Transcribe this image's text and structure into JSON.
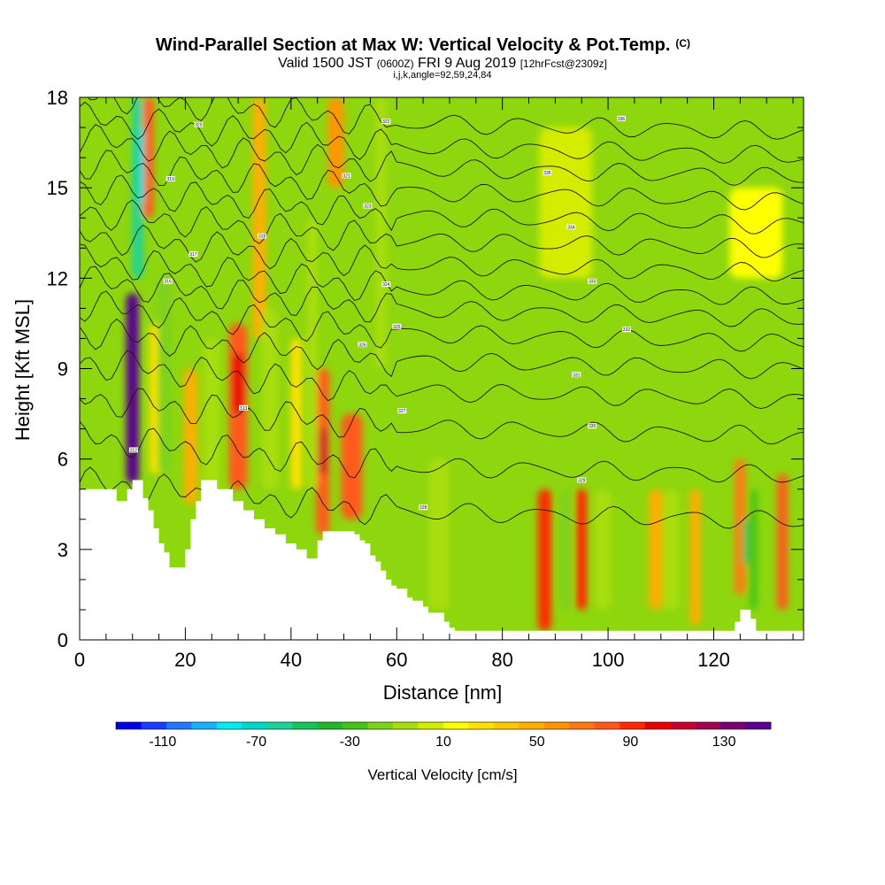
{
  "header": {
    "title": "Wind-Parallel Section at Max W: Vertical Velocity & Pot.Temp.",
    "title_mark": "(C)",
    "line2_a": "Valid 1500 JST",
    "line2_b": "(0600Z)",
    "line2_c": "FRI 9 Aug 2019",
    "line2_d": "[12hrFcst@2309z]",
    "line3": "i,j,k,angle=92,59,24,84"
  },
  "colors": {
    "colorbar": [
      "#0000e6",
      "#1a3cff",
      "#1f78ff",
      "#18b0ff",
      "#00ecf2",
      "#00d9c8",
      "#1cd39a",
      "#18c25d",
      "#24b62a",
      "#44c418",
      "#7ed21a",
      "#a8de0e",
      "#d4ec00",
      "#ffff00",
      "#ffe200",
      "#ffc800",
      "#ffae00",
      "#ff9400",
      "#ff7a14",
      "#ff5a1a",
      "#ff2a00",
      "#e60000",
      "#c8002c",
      "#a0004e",
      "#7a0070",
      "#580090"
    ],
    "background_field": "#8ed60e",
    "terrain": "#ffffff",
    "contour": "#1a1a1a"
  },
  "chart_data": {
    "type": "heatmap",
    "xlabel": "Distance [nm]",
    "ylabel": "Height [Kft MSL]",
    "xlim": [
      0,
      137
    ],
    "ylim": [
      0,
      18
    ],
    "x_ticks": [
      0,
      20,
      40,
      60,
      80,
      100,
      120
    ],
    "y_ticks": [
      0,
      3,
      6,
      9,
      12,
      15,
      18
    ],
    "colorbar": {
      "label": "Vertical Velocity [cm/s]",
      "tick_labels": [
        "-110",
        "-70",
        "-30",
        "10",
        "50",
        "90",
        "130"
      ],
      "min": -130,
      "max": 150,
      "step": 10
    },
    "cells": [
      {
        "x": 10,
        "y0": 5.2,
        "y1": 11.5,
        "w": 2.4,
        "value": 130
      },
      {
        "x": 10,
        "y0": 6.5,
        "y1": 10.5,
        "w": 1.2,
        "value": 140
      },
      {
        "x": 13,
        "y0": 14,
        "y1": 18,
        "w": 2,
        "value": 60
      },
      {
        "x": 14.5,
        "y0": 5.5,
        "y1": 10.5,
        "w": 2.5,
        "value": 10
      },
      {
        "x": 21,
        "y0": 4.5,
        "y1": 9,
        "w": 2.5,
        "value": 30
      },
      {
        "x": 30,
        "y0": 5,
        "y1": 10.5,
        "w": 3.5,
        "value": 60
      },
      {
        "x": 30,
        "y0": 7.5,
        "y1": 9.5,
        "w": 2,
        "value": 80
      },
      {
        "x": 34,
        "y0": 10,
        "y1": 18,
        "w": 2.5,
        "value": 30
      },
      {
        "x": 41,
        "y0": 5,
        "y1": 10,
        "w": 2,
        "value": 10
      },
      {
        "x": 46,
        "y0": 3.5,
        "y1": 9,
        "w": 2.5,
        "value": 60
      },
      {
        "x": 46,
        "y0": 5.5,
        "y1": 7,
        "w": 1.3,
        "value": 90
      },
      {
        "x": 51.5,
        "y0": 4,
        "y1": 7.5,
        "w": 4,
        "value": 60
      },
      {
        "x": 48.5,
        "y0": 15,
        "y1": 18,
        "w": 3,
        "value": 40
      },
      {
        "x": 88,
        "y0": 0.3,
        "y1": 5,
        "w": 2.5,
        "value": 70
      },
      {
        "x": 95,
        "y0": 1,
        "y1": 5,
        "w": 2,
        "value": 70
      },
      {
        "x": 109,
        "y0": 1,
        "y1": 5,
        "w": 2.5,
        "value": 30
      },
      {
        "x": 116.5,
        "y0": 0.5,
        "y1": 5,
        "w": 2,
        "value": 30
      },
      {
        "x": 125,
        "y0": 1.5,
        "y1": 6,
        "w": 2,
        "value": 50
      },
      {
        "x": 133,
        "y0": 1,
        "y1": 5.5,
        "w": 2,
        "value": 60
      },
      {
        "x": 11,
        "y0": 12,
        "y1": 18,
        "w": 2,
        "value": -70
      },
      {
        "x": 11.5,
        "y0": 14.5,
        "y1": 17,
        "w": 1.5,
        "value": -80
      },
      {
        "x": 16,
        "y0": 5.5,
        "y1": 12,
        "w": 2.5,
        "value": -30
      },
      {
        "x": 25,
        "y0": 4,
        "y1": 10,
        "w": 3,
        "value": -20
      },
      {
        "x": 36,
        "y0": 5,
        "y1": 11,
        "w": 3,
        "value": -20
      },
      {
        "x": 44,
        "y0": 5,
        "y1": 14,
        "w": 2,
        "value": -20
      },
      {
        "x": 57,
        "y0": 9,
        "y1": 18,
        "w": 2,
        "value": -20
      },
      {
        "x": 68,
        "y0": 1,
        "y1": 6,
        "w": 4,
        "value": -20
      },
      {
        "x": 92,
        "y0": 1,
        "y1": 5,
        "w": 2,
        "value": -30
      },
      {
        "x": 99,
        "y0": 1,
        "y1": 5,
        "w": 3,
        "value": -20
      },
      {
        "x": 112,
        "y0": 1,
        "y1": 5,
        "w": 3,
        "value": -20
      },
      {
        "x": 127.5,
        "y0": 1,
        "y1": 5,
        "w": 1.5,
        "value": -40
      },
      {
        "x": 126,
        "y0": 2.5,
        "y1": 4,
        "w": 1,
        "value": -60
      },
      {
        "x": 92,
        "y0": 12,
        "y1": 17,
        "w": 10,
        "value": -10
      },
      {
        "x": 128,
        "y0": 12,
        "y1": 15,
        "w": 10,
        "value": 0
      }
    ],
    "terrain_height": [
      [
        0,
        5
      ],
      [
        6,
        5
      ],
      [
        7,
        4.6
      ],
      [
        8,
        4.6
      ],
      [
        9,
        5
      ],
      [
        10,
        5.3
      ],
      [
        11,
        5.3
      ],
      [
        12,
        4.7
      ],
      [
        13,
        4.3
      ],
      [
        14,
        3.7
      ],
      [
        15,
        3.2
      ],
      [
        16,
        2.9
      ],
      [
        17,
        2.4
      ],
      [
        18,
        2.4
      ],
      [
        19,
        2.4
      ],
      [
        20,
        3
      ],
      [
        21,
        4
      ],
      [
        22,
        4.6
      ],
      [
        23,
        5.3
      ],
      [
        24,
        5.3
      ],
      [
        25,
        5.3
      ],
      [
        26,
        5
      ],
      [
        27,
        5
      ],
      [
        28,
        5
      ],
      [
        29,
        4.6
      ],
      [
        30,
        4.6
      ],
      [
        31,
        4.3
      ],
      [
        32,
        4.3
      ],
      [
        33,
        4
      ],
      [
        34,
        4
      ],
      [
        35,
        3.7
      ],
      [
        36,
        3.7
      ],
      [
        37,
        3.5
      ],
      [
        38,
        3.5
      ],
      [
        39,
        3.2
      ],
      [
        40,
        3.2
      ],
      [
        41,
        3
      ],
      [
        42,
        3
      ],
      [
        43,
        2.7
      ],
      [
        44,
        2.7
      ],
      [
        45,
        3.3
      ],
      [
        46,
        3.6
      ],
      [
        47,
        3.6
      ],
      [
        48,
        3.6
      ],
      [
        49,
        3.6
      ],
      [
        50,
        3.6
      ],
      [
        51,
        3.6
      ],
      [
        52,
        3.5
      ],
      [
        53,
        3.3
      ],
      [
        54,
        3.2
      ],
      [
        55,
        2.8
      ],
      [
        56,
        2.6
      ],
      [
        57,
        2.3
      ],
      [
        58,
        2
      ],
      [
        59,
        1.8
      ],
      [
        60,
        1.7
      ],
      [
        61,
        1.7
      ],
      [
        62,
        1.4
      ],
      [
        63,
        1.3
      ],
      [
        64,
        1.3
      ],
      [
        65,
        1.1
      ],
      [
        66,
        0.9
      ],
      [
        67,
        0.9
      ],
      [
        68,
        0.9
      ],
      [
        69,
        0.6
      ],
      [
        70,
        0.4
      ],
      [
        71,
        0.3
      ],
      [
        72,
        0.3
      ],
      [
        123,
        0.3
      ],
      [
        124,
        0.6
      ],
      [
        125,
        1
      ],
      [
        126,
        1
      ],
      [
        127,
        0.7
      ],
      [
        128,
        0.3
      ],
      [
        137,
        0.3
      ]
    ],
    "contour_labels": [
      {
        "x": 10.2,
        "y": 6.3,
        "text": "312"
      },
      {
        "x": 31,
        "y": 7.7,
        "text": "313"
      },
      {
        "x": 16.7,
        "y": 11.9,
        "text": "316"
      },
      {
        "x": 21.5,
        "y": 12.8,
        "text": "317"
      },
      {
        "x": 34.5,
        "y": 13.4,
        "text": "318"
      },
      {
        "x": 17.2,
        "y": 15.3,
        "text": "319"
      },
      {
        "x": 22.5,
        "y": 17.1,
        "text": "320"
      },
      {
        "x": 50.5,
        "y": 15.4,
        "text": "321"
      },
      {
        "x": 58,
        "y": 17.2,
        "text": "322"
      },
      {
        "x": 54.5,
        "y": 14.4,
        "text": "323"
      },
      {
        "x": 58,
        "y": 11.8,
        "text": "324"
      },
      {
        "x": 60,
        "y": 10.4,
        "text": "325"
      },
      {
        "x": 53.5,
        "y": 9.8,
        "text": "326"
      },
      {
        "x": 61,
        "y": 7.6,
        "text": "327"
      },
      {
        "x": 65,
        "y": 4.4,
        "text": "328"
      },
      {
        "x": 95,
        "y": 5.3,
        "text": "329"
      },
      {
        "x": 97,
        "y": 7.1,
        "text": "330"
      },
      {
        "x": 94,
        "y": 8.8,
        "text": "331"
      },
      {
        "x": 103.5,
        "y": 10.3,
        "text": "332"
      },
      {
        "x": 97,
        "y": 11.9,
        "text": "333"
      },
      {
        "x": 93,
        "y": 13.7,
        "text": "334"
      },
      {
        "x": 88.5,
        "y": 15.5,
        "text": "335"
      },
      {
        "x": 102.5,
        "y": 17.3,
        "text": "336"
      }
    ],
    "isentrope_heights": [
      4.5,
      6.0,
      7.3,
      8.5,
      9.5,
      10.4,
      11.2,
      11.9,
      12.7,
      13.5,
      14.3,
      15.1,
      15.9,
      16.6,
      17.4
    ]
  }
}
